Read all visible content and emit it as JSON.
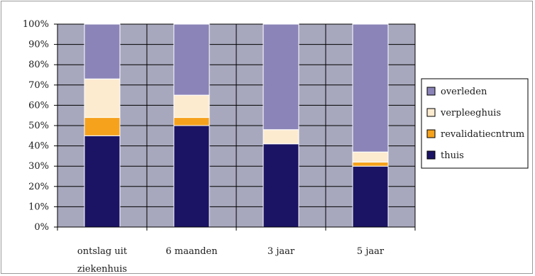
{
  "chart_data": {
    "type": "bar",
    "stacked": true,
    "percent_scale": true,
    "categories": [
      [
        "ontslag uit",
        "ziekenhuis"
      ],
      [
        "6 maanden"
      ],
      [
        "3 jaar"
      ],
      [
        "5 jaar"
      ]
    ],
    "series": [
      {
        "name": "thuis",
        "color": "#1b1464",
        "values": [
          45,
          50,
          41,
          30
        ]
      },
      {
        "name": "revalidatiecntrum",
        "color": "#f6a21c",
        "values": [
          9,
          4,
          0,
          2
        ]
      },
      {
        "name": "verpleeghuis",
        "color": "#fdebd0",
        "values": [
          19,
          11,
          7,
          5
        ]
      },
      {
        "name": "overleden",
        "color": "#8b84b8",
        "values": [
          27,
          35,
          52,
          63
        ]
      }
    ],
    "yticks": [
      "0%",
      "10%",
      "20%",
      "30%",
      "40%",
      "50%",
      "60%",
      "70%",
      "80%",
      "90%",
      "100%"
    ],
    "ylim": [
      0,
      100
    ],
    "grid": true,
    "legend_position": "right",
    "plot_background": "#a7a7bd"
  }
}
